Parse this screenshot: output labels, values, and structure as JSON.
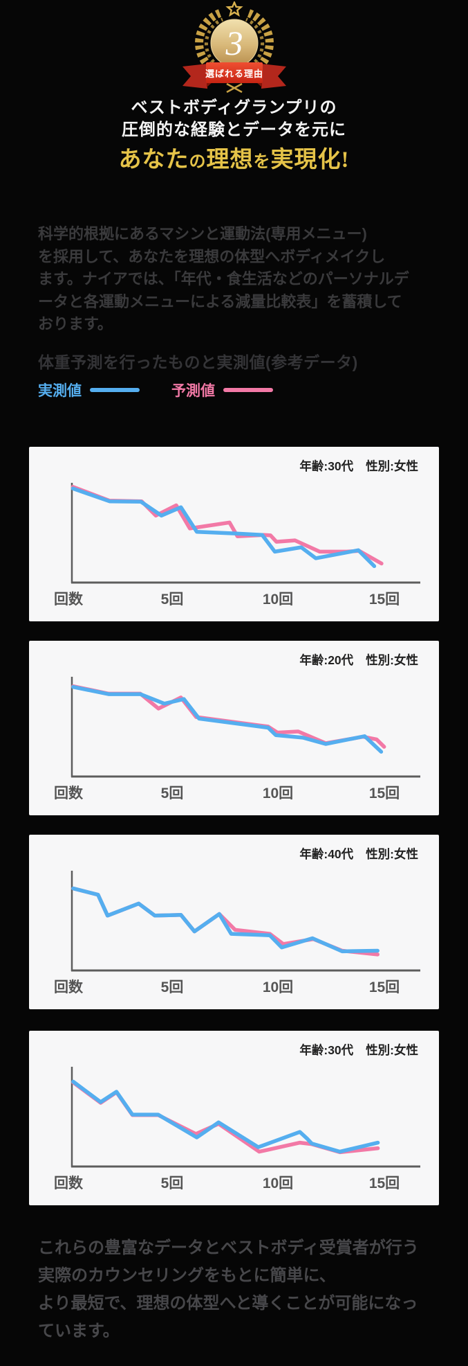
{
  "badge": {
    "number": "3",
    "ribbon_label": "選ばれる理由",
    "gold_color": "#c9a245",
    "ribbon_color": "#d4301d"
  },
  "hero": {
    "title_line1": "ベストボディグランプリの",
    "title_line2": "圧倒的な経験とデータを元に",
    "highlight": {
      "p0": "あなた",
      "p1": "の",
      "p2": "理想",
      "p3": "を",
      "p4": "実現化!"
    }
  },
  "intro": {
    "lines": [
      "科学的根拠にあるマシンと運動法(専用メニュー)",
      "を採用して、あなたを理想の体型へボディメイクし",
      "ます。ナイアでは、「年代・食生活などのパーソナルデ",
      "ータと各運動メニューによる減量比較表」を蓄積して",
      "おります。"
    ]
  },
  "section": {
    "heading": "体重予測を行ったものと実測値(参考データ)"
  },
  "legend": {
    "actual_label": "実測値",
    "predicted_label": "予測値",
    "actual_color": "#55aeef",
    "predicted_color": "#f279a6"
  },
  "chart_data": [
    {
      "type": "line",
      "label_age": "年齢:30代",
      "label_sex": "性別:女性",
      "x_ticks": [
        "回数",
        "5回",
        "10回",
        "15回"
      ],
      "x_axis": "回数 (sessions 0-15)",
      "y_axis": "weight (unlabeled, lower = more weight lost)",
      "note": "points are [x%, y% from plot top]",
      "series": [
        {
          "name": "予測値",
          "color": "#f279a6",
          "points": [
            [
              0.3,
              2
            ],
            [
              11.4,
              16.2
            ],
            [
              21.1,
              16.8
            ],
            [
              25.4,
              31.4
            ],
            [
              31.6,
              20.9
            ],
            [
              35.7,
              44.6
            ],
            [
              47.7,
              38.5
            ],
            [
              50.1,
              52.7
            ],
            [
              58.1,
              51.3
            ],
            [
              60.1,
              51.7
            ],
            [
              61.9,
              58.2
            ],
            [
              67.5,
              56.8
            ],
            [
              75,
              68.4
            ],
            [
              83.2,
              68.4
            ],
            [
              86.9,
              67.5
            ],
            [
              93.7,
              80.5
            ]
          ]
        },
        {
          "name": "実測値",
          "color": "#55aeef",
          "points": [
            [
              0.3,
              3.7
            ],
            [
              11.4,
              16.8
            ],
            [
              20.9,
              17.2
            ],
            [
              27.1,
              31.4
            ],
            [
              33,
              22.9
            ],
            [
              37.8,
              48.1
            ],
            [
              49.3,
              49.7
            ],
            [
              57.6,
              51.3
            ],
            [
              61.4,
              68.4
            ],
            [
              69.4,
              63.9
            ],
            [
              73.8,
              75.1
            ],
            [
              86.7,
              66.9
            ],
            [
              91.5,
              83.2
            ]
          ]
        }
      ]
    },
    {
      "type": "line",
      "label_age": "年齢:20代",
      "label_sex": "性別:女性",
      "x_ticks": [
        "回数",
        "5回",
        "10回",
        "15回"
      ],
      "x_axis": "回数 (sessions 0-15)",
      "y_axis": "weight (unlabeled, lower = more weight lost)",
      "note": "points are [x%, y% from plot top]",
      "series": [
        {
          "name": "予測値",
          "color": "#f279a6",
          "points": [
            [
              0.4,
              7.6
            ],
            [
              11.1,
              15.2
            ],
            [
              20.7,
              15.2
            ],
            [
              26.2,
              30.4
            ],
            [
              33,
              19.1
            ],
            [
              37.6,
              39.1
            ],
            [
              59.4,
              48.9
            ],
            [
              62.2,
              55
            ],
            [
              68.5,
              53.9
            ],
            [
              76.8,
              65.9
            ],
            [
              88.1,
              59.3
            ],
            [
              92.2,
              62
            ],
            [
              94.5,
              69.6
            ]
          ]
        },
        {
          "name": "実測値",
          "color": "#55aeef",
          "points": [
            [
              0.4,
              8.3
            ],
            [
              11.1,
              15.7
            ],
            [
              20.7,
              15.7
            ],
            [
              28,
              25.4
            ],
            [
              33.9,
              20.7
            ],
            [
              38.5,
              40.7
            ],
            [
              59.4,
              50
            ],
            [
              61.7,
              57.6
            ],
            [
              69.9,
              60.2
            ],
            [
              76.8,
              66.7
            ],
            [
              88.6,
              58.7
            ],
            [
              93.6,
              74.6
            ]
          ]
        }
      ]
    },
    {
      "type": "line",
      "label_age": "年齢:40代",
      "label_sex": "性別:女性",
      "x_ticks": [
        "回数",
        "5回",
        "10回",
        "15回"
      ],
      "x_axis": "回数 (sessions 0-15)",
      "y_axis": "weight (unlabeled, lower = more weight lost)",
      "note": "points are [x%, y% from plot top]",
      "series": [
        {
          "name": "予測値",
          "color": "#f279a6",
          "points": [
            [
              0.4,
              16
            ],
            [
              7.9,
              22.5
            ],
            [
              10.8,
              43.8
            ],
            [
              20.2,
              31.5
            ],
            [
              25.1,
              43.8
            ],
            [
              33,
              43.1
            ],
            [
              37.1,
              60
            ],
            [
              44.6,
              42.2
            ],
            [
              49.4,
              58.4
            ],
            [
              59.9,
              62.5
            ],
            [
              64,
              73
            ],
            [
              73.1,
              67.9
            ],
            [
              81.8,
              79.8
            ],
            [
              92.5,
              83.6
            ]
          ]
        },
        {
          "name": "実測値",
          "color": "#55aeef",
          "points": [
            [
              0.4,
              16
            ],
            [
              7.9,
              22.5
            ],
            [
              10.8,
              43.8
            ],
            [
              20.2,
              31.5
            ],
            [
              25.1,
              43.8
            ],
            [
              33,
              43.1
            ],
            [
              37.1,
              60
            ],
            [
              44.6,
              42.2
            ],
            [
              48.2,
              62.5
            ],
            [
              59.9,
              64
            ],
            [
              63.5,
              76.4
            ],
            [
              72.8,
              67
            ],
            [
              81.8,
              80.4
            ],
            [
              92.5,
              79.8
            ]
          ]
        }
      ]
    },
    {
      "type": "line",
      "label_age": "年齢:30代",
      "label_sex": "性別:女性",
      "x_ticks": [
        "回数",
        "5回",
        "10回",
        "15回"
      ],
      "x_axis": "回数 (sessions 0-15)",
      "y_axis": "weight (unlabeled, lower = more weight lost)",
      "note": "points are [x%, y% from plot top]",
      "series": [
        {
          "name": "予測値",
          "color": "#f279a6",
          "points": [
            [
              0.4,
              14
            ],
            [
              8.7,
              34.8
            ],
            [
              13.5,
              24
            ],
            [
              18.3,
              47.3
            ],
            [
              26.1,
              47.3
            ],
            [
              37.5,
              66.7
            ],
            [
              44.4,
              56.3
            ],
            [
              56.7,
              84.8
            ],
            [
              69,
              75.6
            ],
            [
              72.6,
              77.1
            ],
            [
              81.1,
              85.4
            ],
            [
              92.6,
              81.3
            ]
          ]
        },
        {
          "name": "実測値",
          "color": "#55aeef",
          "points": [
            [
              0.4,
              13.1
            ],
            [
              8.7,
              34
            ],
            [
              13.5,
              23.5
            ],
            [
              18.3,
              46.9
            ],
            [
              26.1,
              46.9
            ],
            [
              37.8,
              70.2
            ],
            [
              44.4,
              54.8
            ],
            [
              56.4,
              80.2
            ],
            [
              69,
              64.6
            ],
            [
              71.2,
              71.5
            ],
            [
              72.6,
              76.5
            ],
            [
              81.1,
              84.8
            ],
            [
              92.6,
              75.6
            ]
          ]
        }
      ]
    }
  ],
  "outro": {
    "lines": [
      "これらの豊富なデータとベストボディ受賞者が行う",
      "実際のカウンセリングをもとに簡単に、",
      "より最短で、理想の体型へと導くことが可能になっ",
      "ています。"
    ]
  }
}
